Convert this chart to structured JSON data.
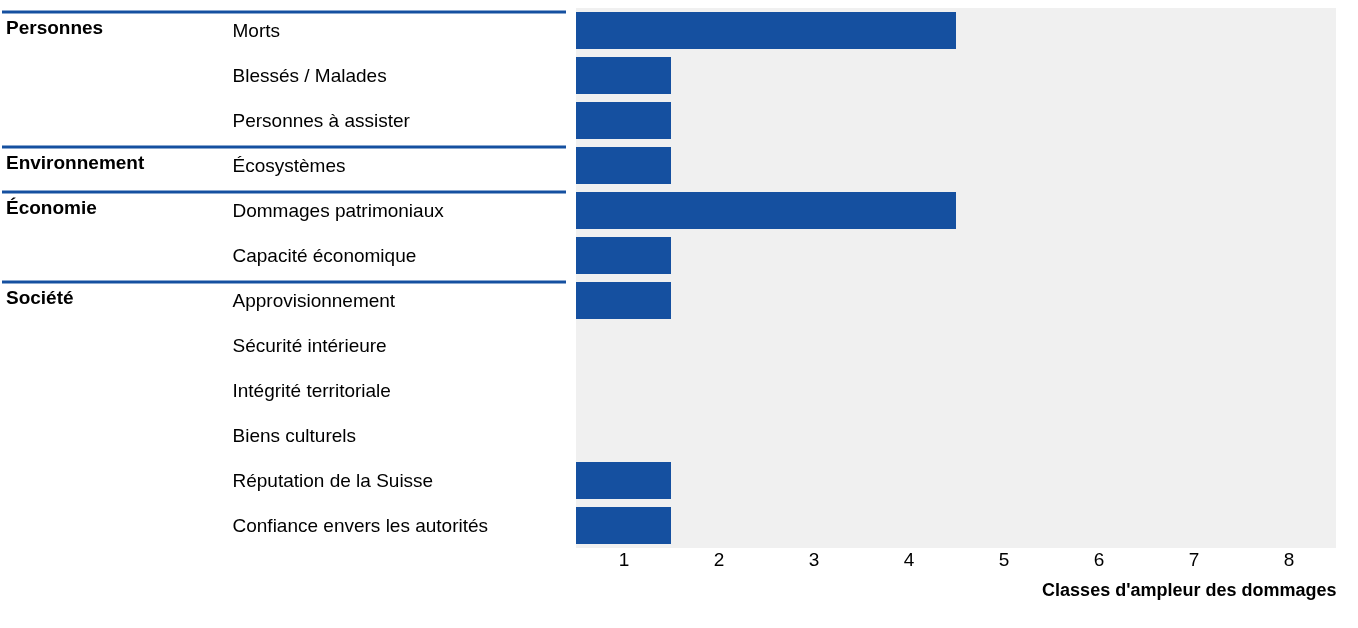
{
  "chart_data": {
    "type": "bar",
    "orientation": "horizontal",
    "categories": [
      "Morts",
      "Blessés / Malades",
      "Personnes à assister",
      "Écosystèmes",
      "Dommages patrimoniaux",
      "Capacité économique",
      "Approvisionnement",
      "Sécurité intérieure",
      "Intégrité territoriale",
      "Biens culturels",
      "Réputation de la Suisse",
      "Confiance envers les autorités"
    ],
    "series": [
      {
        "color": "#1550a0",
        "values": [
          4,
          1,
          1,
          1,
          4,
          1,
          1,
          0,
          0,
          0,
          1,
          1
        ]
      }
    ],
    "xlabel": "Classes d'ampleur des dommages",
    "xlim": [
      0,
      8
    ],
    "xticks": [
      {
        "value": 0.5,
        "label": "1"
      },
      {
        "value": 1.5,
        "label": "2"
      },
      {
        "value": 2.5,
        "label": "3"
      },
      {
        "value": 3.5,
        "label": "4"
      },
      {
        "value": 4.5,
        "label": "5"
      },
      {
        "value": 5.5,
        "label": "6"
      },
      {
        "value": 6.5,
        "label": "7"
      },
      {
        "value": 7.5,
        "label": "8"
      }
    ],
    "annotations": [
      "Personnes",
      "Environnement",
      "Économie",
      "Société"
    ]
  }
}
